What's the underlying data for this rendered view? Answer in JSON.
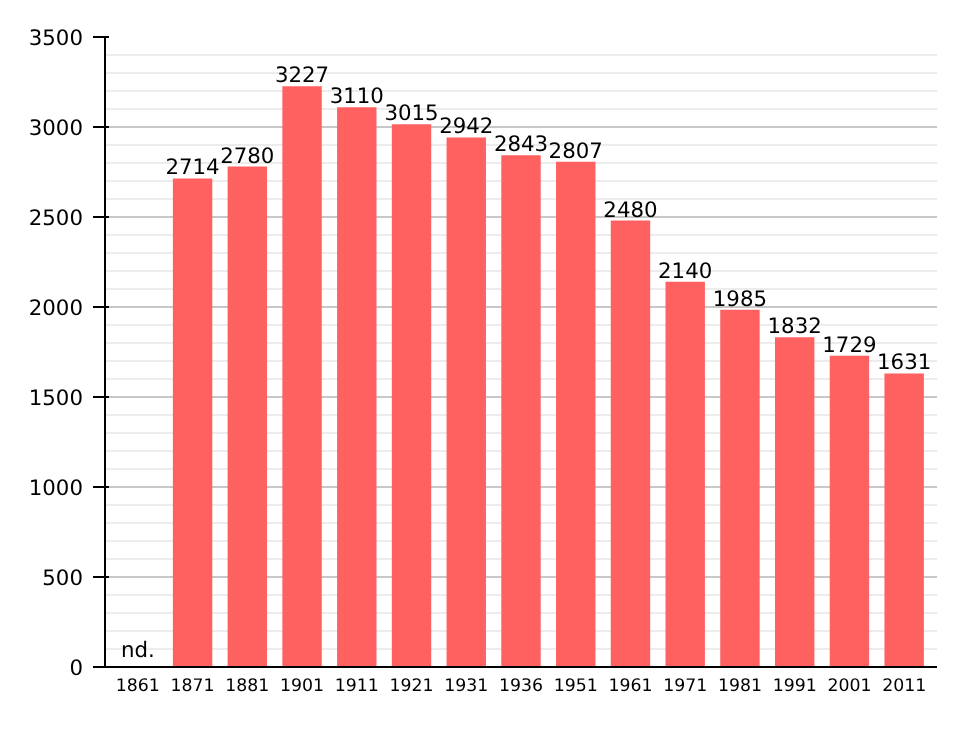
{
  "chart_data": {
    "type": "bar",
    "categories": [
      "1861",
      "1871",
      "1881",
      "1901",
      "1911",
      "1921",
      "1931",
      "1936",
      "1951",
      "1961",
      "1971",
      "1981",
      "1991",
      "2001",
      "2011"
    ],
    "values": [
      null,
      2714,
      2780,
      3227,
      3110,
      3015,
      2942,
      2843,
      2807,
      2480,
      2140,
      1985,
      1832,
      1729,
      1631
    ],
    "value_labels": [
      "nd.",
      "2714",
      "2780",
      "3227",
      "3110",
      "3015",
      "2942",
      "2843",
      "2807",
      "2480",
      "2140",
      "1985",
      "1832",
      "1729",
      "1631"
    ],
    "color": "#ff6060",
    "ylim": [
      0,
      3500
    ],
    "yticks": [
      0,
      500,
      1000,
      1500,
      2000,
      2500,
      3000,
      3500
    ],
    "grid": "y"
  }
}
